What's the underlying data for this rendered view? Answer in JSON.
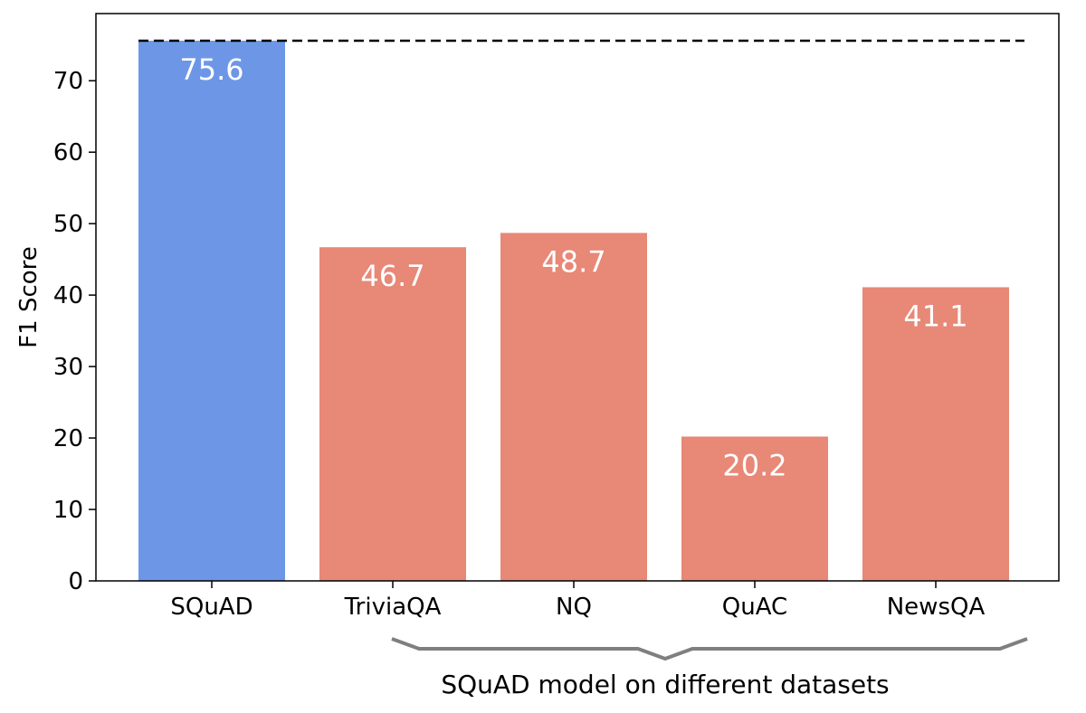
{
  "chart_data": {
    "type": "bar",
    "categories": [
      "SQuAD",
      "TriviaQA",
      "NQ",
      "QuAC",
      "NewsQA"
    ],
    "values": [
      75.6,
      46.7,
      48.7,
      20.2,
      41.1
    ],
    "value_labels": [
      "75.6",
      "46.7",
      "48.7",
      "20.2",
      "41.1"
    ],
    "bar_colors": [
      "#6d97e6",
      "#e88877",
      "#e88877",
      "#e88877",
      "#e88877"
    ],
    "ylabel": "F1 Score",
    "yticks": [
      0,
      10,
      20,
      30,
      40,
      50,
      60,
      70
    ],
    "ylim": [
      0,
      79.4
    ],
    "reference_line": {
      "value": 75.6,
      "style": "dashed",
      "color": "#000000"
    },
    "group_annotation": {
      "label": "SQuAD model on different datasets",
      "from_category": "TriviaQA",
      "to_category": "NewsQA",
      "color": "#7f7f7f"
    },
    "grid": false
  }
}
